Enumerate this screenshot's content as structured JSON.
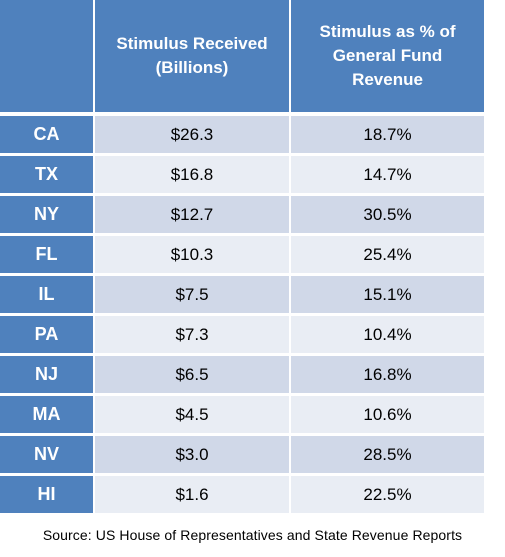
{
  "chart_data": {
    "type": "table",
    "columns": [
      "",
      "Stimulus Received\n(Billions)",
      "Stimulus as % of\nGeneral Fund\nRevenue"
    ],
    "rows": [
      {
        "state": "CA",
        "received": "$26.3",
        "pct": "18.7%"
      },
      {
        "state": "TX",
        "received": "$16.8",
        "pct": "14.7%"
      },
      {
        "state": "NY",
        "received": "$12.7",
        "pct": "30.5%"
      },
      {
        "state": "FL",
        "received": "$10.3",
        "pct": "25.4%"
      },
      {
        "state": "IL",
        "received": "$7.5",
        "pct": "15.1%"
      },
      {
        "state": "PA",
        "received": "$7.3",
        "pct": "10.4%"
      },
      {
        "state": "NJ",
        "received": "$6.5",
        "pct": "16.8%"
      },
      {
        "state": "MA",
        "received": "$4.5",
        "pct": "10.6%"
      },
      {
        "state": "NV",
        "received": "$3.0",
        "pct": "28.5%"
      },
      {
        "state": "HI",
        "received": "$1.6",
        "pct": "22.5%"
      }
    ],
    "source": "Source: US House of Representatives and State Revenue Reports"
  },
  "colors": {
    "header": "#4f81bd",
    "row_odd": "#d0d8e8",
    "row_even": "#e9edf4"
  }
}
